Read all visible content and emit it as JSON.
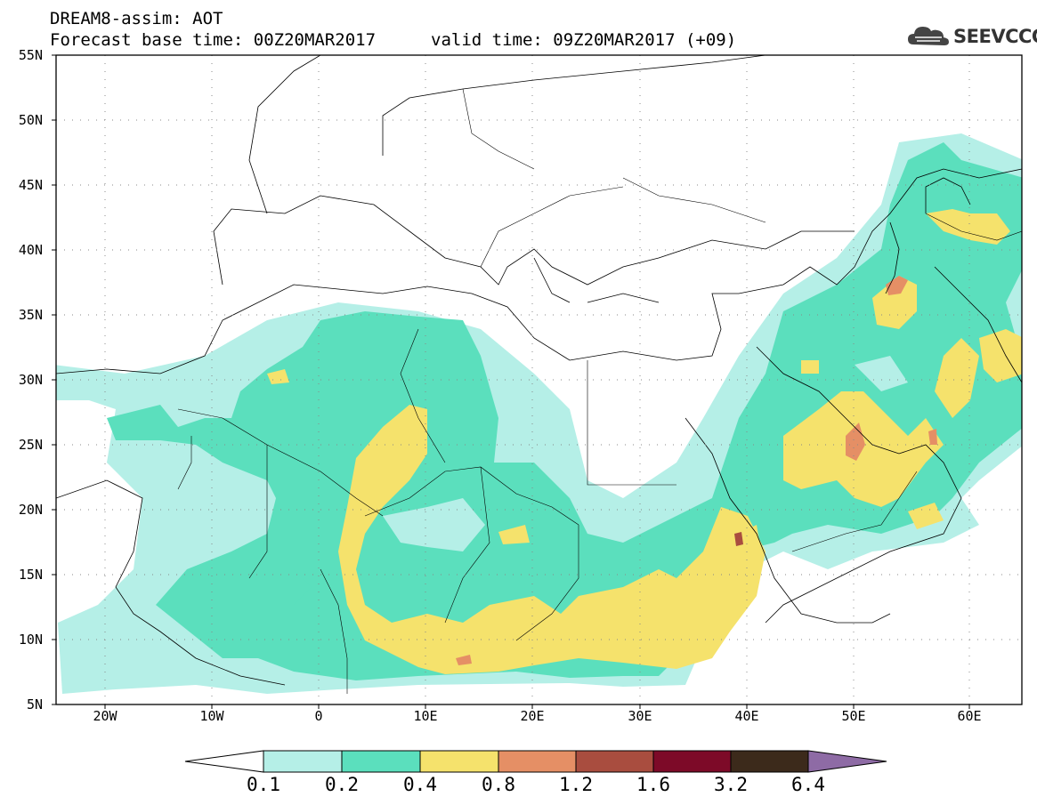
{
  "header": {
    "title_line1": "DREAM8-assim: AOT",
    "title_line2": "Forecast base time: 00Z20MAR2017",
    "valid_time": "valid time: 09Z20MAR2017 (+09)",
    "logo_text": "SEEVCCC",
    "logo_icon": "cloud-logo-icon"
  },
  "map": {
    "projection": "lat-lon",
    "lon_range": [
      -25,
      65
    ],
    "lat_range": [
      5,
      55
    ],
    "lat_labels": [
      "55N",
      "50N",
      "45N",
      "40N",
      "35N",
      "30N",
      "25N",
      "20N",
      "15N",
      "10N",
      "5N"
    ],
    "lon_labels": [
      "20W",
      "10W",
      "0",
      "10E",
      "20E",
      "30E",
      "40E",
      "50E",
      "60E"
    ],
    "gridlines": "dotted"
  },
  "colorbar": {
    "levels": [
      "0.1",
      "0.2",
      "0.4",
      "0.8",
      "1.2",
      "1.6",
      "3.2",
      "6.4"
    ],
    "colors": [
      "#ffffff",
      "#b5efe7",
      "#5bdfbd",
      "#f5e26c",
      "#e58f65",
      "#a94d3f",
      "#7d0a28",
      "#3c2a1b",
      "#8e6ba5"
    ],
    "extend": "both"
  }
}
